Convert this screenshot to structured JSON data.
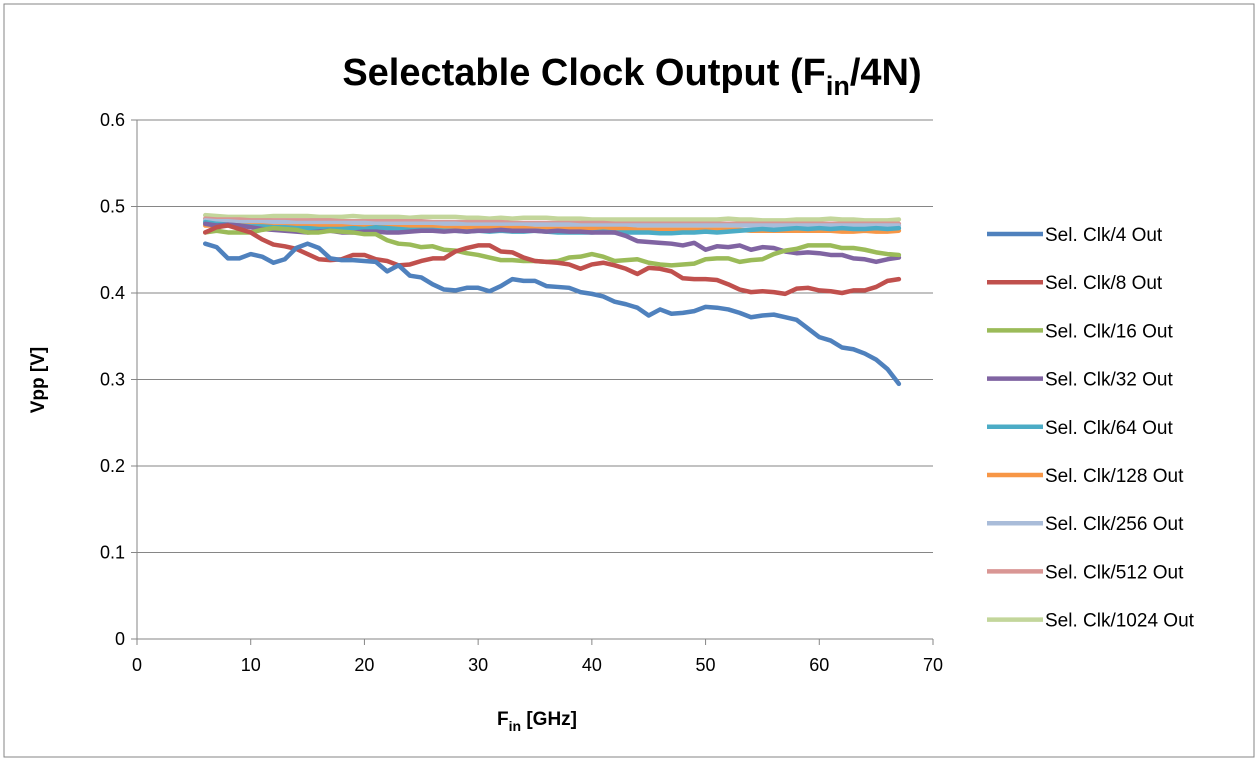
{
  "chart_data": {
    "type": "line",
    "title": [
      "Selectable Clock Output (F",
      "in",
      "/4N)"
    ],
    "xlabel": [
      "F",
      "in",
      " [GHz]"
    ],
    "ylabel": "Vpp [V]",
    "xlim": [
      0,
      70
    ],
    "xticks": [
      0,
      10,
      20,
      30,
      40,
      50,
      60,
      70
    ],
    "ylim": [
      0,
      0.6
    ],
    "yticks": [
      0,
      0.1,
      0.2,
      0.3,
      0.4,
      0.5,
      0.6
    ],
    "grid": true,
    "legend": "right",
    "x": [
      6,
      7,
      8,
      9,
      10,
      11,
      12,
      13,
      14,
      15,
      16,
      17,
      18,
      19,
      20,
      21,
      22,
      23,
      24,
      25,
      26,
      27,
      28,
      29,
      30,
      31,
      32,
      33,
      34,
      35,
      36,
      37,
      38,
      39,
      40,
      41,
      42,
      43,
      44,
      45,
      46,
      47,
      48,
      49,
      50,
      51,
      52,
      53,
      54,
      55,
      56,
      57,
      58,
      59,
      60,
      61,
      62,
      63,
      64,
      65,
      66,
      67
    ],
    "series": [
      {
        "name": "Sel. Clk/1024 Out",
        "color": "#c3d69b",
        "values": [
          0.49,
          0.489,
          0.488,
          0.488,
          0.488,
          0.488,
          0.489,
          0.489,
          0.489,
          0.489,
          0.488,
          0.488,
          0.488,
          0.489,
          0.488,
          0.488,
          0.488,
          0.488,
          0.487,
          0.488,
          0.488,
          0.488,
          0.488,
          0.487,
          0.487,
          0.486,
          0.487,
          0.486,
          0.487,
          0.487,
          0.487,
          0.486,
          0.486,
          0.486,
          0.485,
          0.485,
          0.485,
          0.485,
          0.485,
          0.485,
          0.485,
          0.485,
          0.485,
          0.485,
          0.485,
          0.485,
          0.486,
          0.485,
          0.485,
          0.484,
          0.484,
          0.484,
          0.485,
          0.485,
          0.485,
          0.486,
          0.485,
          0.485,
          0.484,
          0.484,
          0.484,
          0.485
        ]
      },
      {
        "name": "Sel. Clk/512 Out",
        "color": "#d99694",
        "values": [
          0.486,
          0.485,
          0.485,
          0.485,
          0.484,
          0.484,
          0.484,
          0.484,
          0.484,
          0.484,
          0.484,
          0.484,
          0.483,
          0.483,
          0.483,
          0.483,
          0.483,
          0.483,
          0.483,
          0.483,
          0.482,
          0.482,
          0.482,
          0.482,
          0.482,
          0.482,
          0.482,
          0.481,
          0.481,
          0.481,
          0.481,
          0.481,
          0.481,
          0.481,
          0.481,
          0.481,
          0.48,
          0.48,
          0.48,
          0.48,
          0.48,
          0.48,
          0.48,
          0.48,
          0.48,
          0.48,
          0.48,
          0.48,
          0.48,
          0.48,
          0.48,
          0.48,
          0.48,
          0.48,
          0.48,
          0.48,
          0.48,
          0.48,
          0.48,
          0.48,
          0.48,
          0.48
        ]
      },
      {
        "name": "Sel. Clk/256 Out",
        "color": "#a9bcd9",
        "values": [
          0.484,
          0.483,
          0.483,
          0.482,
          0.482,
          0.482,
          0.482,
          0.482,
          0.481,
          0.481,
          0.481,
          0.481,
          0.481,
          0.481,
          0.481,
          0.48,
          0.48,
          0.48,
          0.48,
          0.48,
          0.48,
          0.48,
          0.48,
          0.479,
          0.479,
          0.479,
          0.479,
          0.479,
          0.479,
          0.479,
          0.479,
          0.479,
          0.479,
          0.478,
          0.478,
          0.478,
          0.478,
          0.478,
          0.478,
          0.478,
          0.478,
          0.478,
          0.478,
          0.478,
          0.478,
          0.478,
          0.478,
          0.478,
          0.478,
          0.478,
          0.478,
          0.478,
          0.478,
          0.478,
          0.478,
          0.478,
          0.478,
          0.478,
          0.478,
          0.478,
          0.478,
          0.478
        ]
      },
      {
        "name": "Sel. Clk/128 Out",
        "color": "#f79646",
        "values": [
          0.478,
          0.478,
          0.478,
          0.478,
          0.478,
          0.478,
          0.477,
          0.477,
          0.477,
          0.477,
          0.477,
          0.477,
          0.477,
          0.476,
          0.476,
          0.476,
          0.476,
          0.476,
          0.476,
          0.476,
          0.476,
          0.475,
          0.475,
          0.475,
          0.475,
          0.475,
          0.475,
          0.475,
          0.475,
          0.474,
          0.474,
          0.474,
          0.474,
          0.474,
          0.474,
          0.474,
          0.474,
          0.474,
          0.473,
          0.473,
          0.473,
          0.473,
          0.473,
          0.473,
          0.473,
          0.473,
          0.473,
          0.473,
          0.472,
          0.472,
          0.472,
          0.472,
          0.472,
          0.472,
          0.472,
          0.472,
          0.471,
          0.471,
          0.472,
          0.471,
          0.471,
          0.472
        ]
      },
      {
        "name": "Sel. Clk/64 Out",
        "color": "#4bacc6",
        "values": [
          0.482,
          0.48,
          0.479,
          0.478,
          0.477,
          0.477,
          0.476,
          0.476,
          0.475,
          0.475,
          0.474,
          0.474,
          0.474,
          0.475,
          0.474,
          0.476,
          0.475,
          0.474,
          0.473,
          0.473,
          0.473,
          0.472,
          0.472,
          0.471,
          0.472,
          0.471,
          0.472,
          0.471,
          0.471,
          0.472,
          0.471,
          0.47,
          0.47,
          0.47,
          0.47,
          0.471,
          0.47,
          0.47,
          0.47,
          0.47,
          0.469,
          0.469,
          0.47,
          0.47,
          0.471,
          0.47,
          0.471,
          0.472,
          0.473,
          0.474,
          0.473,
          0.474,
          0.475,
          0.474,
          0.475,
          0.474,
          0.475,
          0.474,
          0.474,
          0.475,
          0.474,
          0.475
        ]
      },
      {
        "name": "Sel. Clk/32 Out",
        "color": "#8064a2",
        "values": [
          0.48,
          0.478,
          0.479,
          0.478,
          0.476,
          0.474,
          0.473,
          0.472,
          0.471,
          0.47,
          0.471,
          0.472,
          0.47,
          0.47,
          0.471,
          0.471,
          0.47,
          0.47,
          0.471,
          0.472,
          0.472,
          0.471,
          0.472,
          0.471,
          0.472,
          0.472,
          0.473,
          0.472,
          0.472,
          0.472,
          0.471,
          0.472,
          0.471,
          0.471,
          0.47,
          0.47,
          0.47,
          0.466,
          0.46,
          0.459,
          0.458,
          0.457,
          0.455,
          0.458,
          0.45,
          0.454,
          0.453,
          0.455,
          0.45,
          0.453,
          0.452,
          0.448,
          0.446,
          0.447,
          0.446,
          0.444,
          0.444,
          0.44,
          0.439,
          0.436,
          0.439,
          0.441
        ]
      },
      {
        "name": "Sel. Clk/16 Out",
        "color": "#9bbb59",
        "values": [
          0.47,
          0.472,
          0.47,
          0.47,
          0.47,
          0.473,
          0.475,
          0.474,
          0.473,
          0.47,
          0.47,
          0.472,
          0.471,
          0.47,
          0.468,
          0.468,
          0.461,
          0.457,
          0.456,
          0.453,
          0.454,
          0.45,
          0.449,
          0.446,
          0.444,
          0.441,
          0.438,
          0.438,
          0.437,
          0.437,
          0.436,
          0.437,
          0.441,
          0.442,
          0.445,
          0.442,
          0.437,
          0.438,
          0.439,
          0.435,
          0.433,
          0.432,
          0.433,
          0.434,
          0.439,
          0.44,
          0.44,
          0.436,
          0.438,
          0.439,
          0.445,
          0.449,
          0.451,
          0.455,
          0.455,
          0.455,
          0.452,
          0.452,
          0.45,
          0.447,
          0.445,
          0.444
        ]
      },
      {
        "name": "Sel. Clk/8 Out",
        "color": "#c0504d",
        "values": [
          0.47,
          0.476,
          0.478,
          0.474,
          0.47,
          0.462,
          0.456,
          0.454,
          0.451,
          0.445,
          0.439,
          0.438,
          0.439,
          0.444,
          0.444,
          0.439,
          0.437,
          0.432,
          0.433,
          0.437,
          0.44,
          0.44,
          0.448,
          0.452,
          0.455,
          0.455,
          0.448,
          0.447,
          0.441,
          0.437,
          0.436,
          0.435,
          0.433,
          0.428,
          0.433,
          0.435,
          0.432,
          0.428,
          0.422,
          0.429,
          0.428,
          0.425,
          0.417,
          0.416,
          0.416,
          0.415,
          0.41,
          0.404,
          0.401,
          0.402,
          0.401,
          0.399,
          0.405,
          0.406,
          0.403,
          0.402,
          0.4,
          0.403,
          0.403,
          0.407,
          0.414,
          0.416
        ]
      },
      {
        "name": "Sel. Clk/4 Out",
        "color": "#4f81bd",
        "values": [
          0.457,
          0.453,
          0.44,
          0.44,
          0.445,
          0.442,
          0.435,
          0.439,
          0.452,
          0.457,
          0.452,
          0.44,
          0.438,
          0.438,
          0.437,
          0.436,
          0.425,
          0.432,
          0.42,
          0.418,
          0.41,
          0.404,
          0.403,
          0.406,
          0.406,
          0.402,
          0.408,
          0.416,
          0.414,
          0.414,
          0.408,
          0.407,
          0.406,
          0.401,
          0.399,
          0.396,
          0.39,
          0.387,
          0.383,
          0.374,
          0.381,
          0.376,
          0.377,
          0.379,
          0.384,
          0.383,
          0.381,
          0.377,
          0.372,
          0.374,
          0.375,
          0.372,
          0.369,
          0.359,
          0.349,
          0.345,
          0.337,
          0.335,
          0.33,
          0.323,
          0.312,
          0.295
        ]
      }
    ]
  }
}
